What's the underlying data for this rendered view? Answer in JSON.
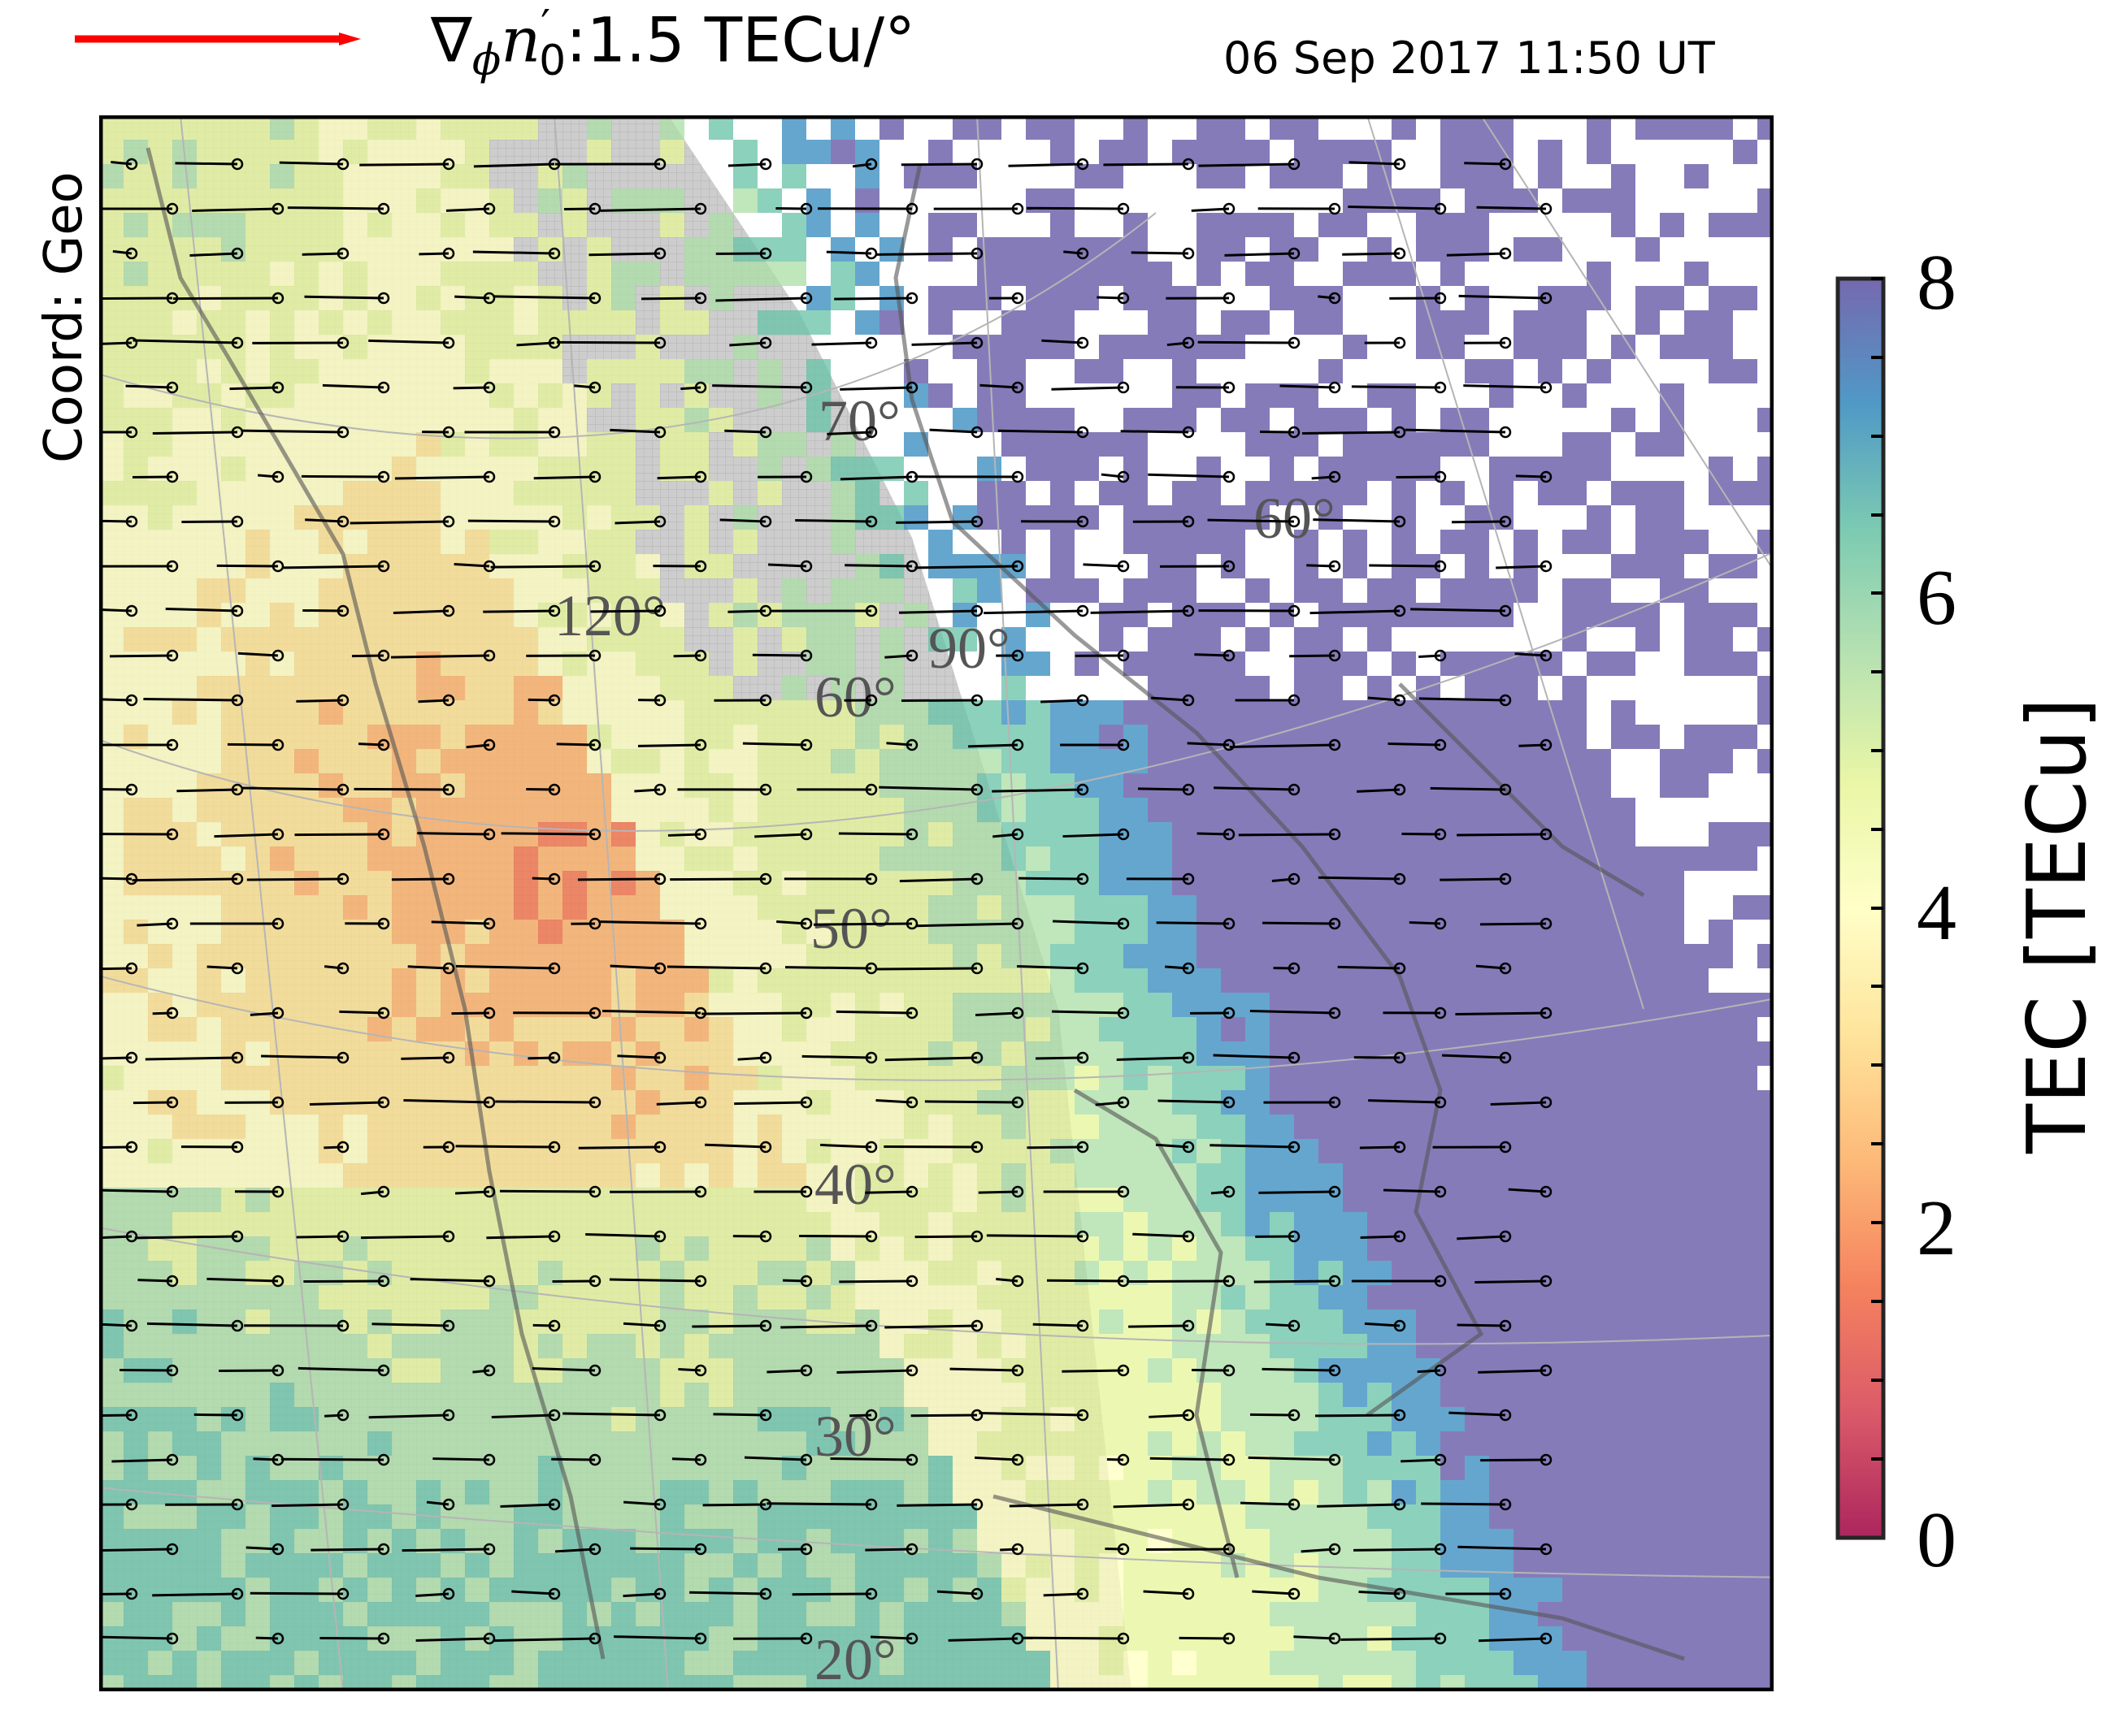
{
  "header": {
    "legend_prefix": "∇",
    "legend_sub": "ϕ",
    "legend_var": "n",
    "legend_prime": "′",
    "legend_sub0": "0",
    "legend_value": ":1.5 TECu/°",
    "timestamp": "06 Sep 2017 11:50 UT",
    "coord_label": "Coord:  Geo",
    "arrow_color": "#ff0000"
  },
  "map": {
    "lat_labels": [
      "70°",
      "60°",
      "60°",
      "50°",
      "40°",
      "30°",
      "20°",
      "60°",
      "90°",
      "120°"
    ]
  },
  "colorbar": {
    "label": "TEC [TECu]",
    "ticks": [
      "8",
      "6",
      "4",
      "2",
      "0"
    ],
    "min": 0,
    "max": 8,
    "colormap": "Spectral",
    "colors": [
      "#9e0142",
      "#d53e4f",
      "#f46d43",
      "#fdae61",
      "#fee08b",
      "#ffffbf",
      "#e6f598",
      "#abdda4",
      "#66c2a5",
      "#3288bd",
      "#5e4fa2"
    ]
  }
}
